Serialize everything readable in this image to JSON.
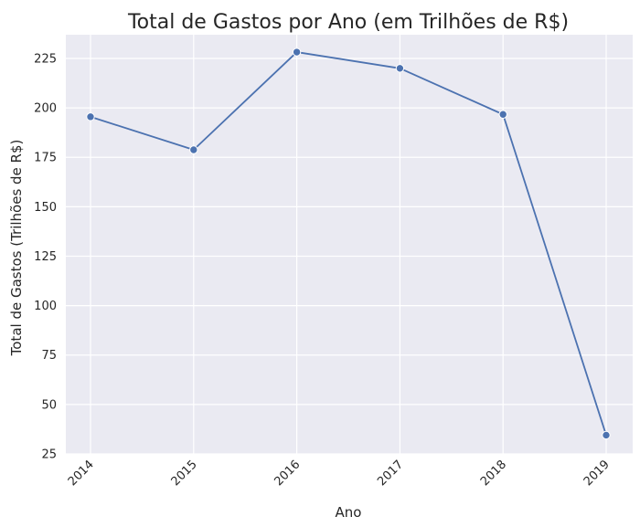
{
  "chart_data": {
    "type": "line",
    "title": "Total de Gastos por Ano (em Trilhões de R$)",
    "xlabel": "Ano",
    "ylabel": "Total de Gastos (Trilhões de R$)",
    "x": [
      "2014",
      "2015",
      "2016",
      "2017",
      "2018",
      "2019"
    ],
    "series": [
      {
        "values": [
          195.5,
          178.8,
          228.2,
          220.0,
          196.7,
          34.5
        ]
      }
    ],
    "ylim": [
      25,
      237
    ],
    "yticks": [
      25,
      50,
      75,
      100,
      125,
      150,
      175,
      200,
      225
    ],
    "grid": true,
    "style": {
      "background": "#eaeaf2",
      "grid_color": "#ffffff",
      "line_color": "#4c72b0",
      "marker_edge": "#ffffff",
      "text_color": "#262626"
    }
  }
}
